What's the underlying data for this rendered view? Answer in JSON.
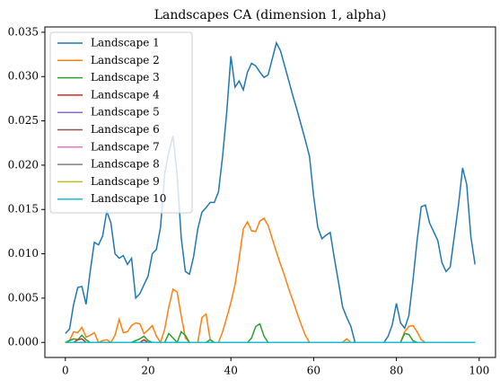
{
  "chart_data": {
    "type": "line",
    "title": "Landscapes CA (dimension 1, alpha)",
    "x": [
      0,
      1,
      2,
      3,
      4,
      5,
      6,
      7,
      8,
      9,
      10,
      11,
      12,
      13,
      14,
      15,
      16,
      17,
      18,
      19,
      20,
      21,
      22,
      23,
      24,
      25,
      26,
      27,
      28,
      29,
      30,
      31,
      32,
      33,
      34,
      35,
      36,
      37,
      38,
      39,
      40,
      41,
      42,
      43,
      44,
      45,
      46,
      47,
      48,
      49,
      50,
      51,
      52,
      53,
      54,
      55,
      56,
      57,
      58,
      59,
      60,
      61,
      62,
      63,
      64,
      65,
      66,
      67,
      68,
      69,
      70,
      71,
      72,
      73,
      74,
      75,
      76,
      77,
      78,
      79,
      80,
      81,
      82,
      83,
      84,
      85,
      86,
      87,
      88,
      89,
      90,
      91,
      92,
      93,
      94,
      95,
      96,
      97,
      98,
      99
    ],
    "xlim": [
      -4.95,
      103.95
    ],
    "xticks": [
      0,
      20,
      40,
      60,
      80,
      100
    ],
    "ylim": [
      -0.0017,
      0.0356
    ],
    "yticks": [
      {
        "value": 0,
        "label": "0.000"
      },
      {
        "value": 0.005,
        "label": "0.005"
      },
      {
        "value": 0.01,
        "label": "0.010"
      },
      {
        "value": 0.015,
        "label": "0.015"
      },
      {
        "value": 0.02,
        "label": "0.020"
      },
      {
        "value": 0.025,
        "label": "0.025"
      },
      {
        "value": 0.03,
        "label": "0.030"
      },
      {
        "value": 0.035,
        "label": "0.035"
      }
    ],
    "legend": "upper left",
    "series": [
      {
        "name": "Landscape 1",
        "color": "#1f77b4",
        "values": [
          0.001,
          0.0015,
          0.0043,
          0.0062,
          0.0063,
          0.0043,
          0.008,
          0.0113,
          0.011,
          0.012,
          0.0148,
          0.0135,
          0.01,
          0.0095,
          0.0098,
          0.0088,
          0.0095,
          0.005,
          0.0055,
          0.0065,
          0.0075,
          0.01,
          0.0105,
          0.013,
          0.019,
          0.0215,
          0.0233,
          0.019,
          0.0118,
          0.008,
          0.0077,
          0.0097,
          0.0128,
          0.0147,
          0.0152,
          0.0158,
          0.0158,
          0.017,
          0.021,
          0.026,
          0.0323,
          0.0288,
          0.0295,
          0.0285,
          0.0305,
          0.0315,
          0.0312,
          0.0305,
          0.0299,
          0.0302,
          0.032,
          0.0338,
          0.0329,
          0.0312,
          0.0295,
          0.0278,
          0.0262,
          0.0245,
          0.0228,
          0.021,
          0.0165,
          0.013,
          0.0117,
          0.0121,
          0.0124,
          0.0095,
          0.0068,
          0.004,
          0.0028,
          0.0018,
          0,
          0,
          0,
          0,
          0,
          0,
          0,
          0,
          0.0007,
          0.002,
          0.0044,
          0.0022,
          0.0016,
          0.003,
          0.007,
          0.0115,
          0.0153,
          0.0155,
          0.0135,
          0.0125,
          0.0115,
          0.009,
          0.008,
          0.0085,
          0.012,
          0.0155,
          0.0197,
          0.0178,
          0.0119,
          0.0088
        ]
      },
      {
        "name": "Landscape 2",
        "color": "#ff7f0e",
        "values": [
          0,
          0.0002,
          0.0012,
          0.0011,
          0.0017,
          0.0006,
          0.0008,
          0.0011,
          0,
          0.0002,
          0.0003,
          0,
          0.0008,
          0.0026,
          0.0011,
          0.0012,
          0.0019,
          0.0022,
          0.0021,
          0.001,
          0.0014,
          0.0019,
          0.0007,
          0,
          0.0015,
          0.004,
          0.006,
          0.0057,
          0.003,
          0.0005,
          0,
          0,
          0,
          0.0028,
          0.0032,
          0.0003,
          0,
          0,
          0.0012,
          0.0028,
          0.0045,
          0.0065,
          0.0095,
          0.0128,
          0.0136,
          0.0126,
          0.0125,
          0.0137,
          0.014,
          0.0132,
          0.0117,
          0.0102,
          0.0088,
          0.0075,
          0.006,
          0.0047,
          0.0033,
          0.002,
          0.0008,
          0,
          0,
          0,
          0,
          0,
          0,
          0,
          0,
          0,
          0.0004,
          0,
          0,
          0,
          0,
          0,
          0,
          0,
          0,
          0,
          0,
          0,
          0,
          0,
          0.0012,
          0.0018,
          0.0019,
          0.0012,
          0.0003,
          0,
          0,
          0,
          0,
          0,
          0,
          0,
          0,
          0,
          0,
          0,
          0,
          0
        ]
      },
      {
        "name": "Landscape 3",
        "color": "#2ca02c",
        "values": [
          0,
          0.0002,
          0.0004,
          0.0003,
          0.0008,
          0.0003,
          0,
          0,
          0,
          0,
          0,
          0,
          0,
          0,
          0,
          0,
          0,
          0.0002,
          0.0004,
          0.0007,
          0.0002,
          0,
          0,
          0,
          0,
          0.001,
          0.0005,
          0,
          0.0012,
          0.0008,
          0,
          0,
          0,
          0,
          0,
          0.0003,
          0,
          0,
          0,
          0,
          0,
          0,
          0,
          0,
          0,
          0.0005,
          0.0018,
          0.0021,
          0.0007,
          0,
          0,
          0,
          0,
          0,
          0,
          0,
          0,
          0,
          0,
          0,
          0,
          0,
          0,
          0,
          0,
          0,
          0,
          0,
          0,
          0,
          0,
          0,
          0,
          0,
          0,
          0,
          0,
          0,
          0,
          0,
          0,
          0,
          0.001,
          0.0009,
          0.0002,
          0,
          0,
          0,
          0,
          0,
          0,
          0,
          0,
          0,
          0,
          0,
          0,
          0,
          0,
          0
        ]
      },
      {
        "name": "Landscape 4",
        "color": "#d62728",
        "values": [
          0,
          0,
          0,
          0.0003,
          0.0004,
          0,
          0,
          0,
          0,
          0,
          0,
          0,
          0,
          0,
          0,
          0,
          0,
          0,
          0,
          0.0003,
          0,
          0,
          0,
          0,
          0,
          0,
          0,
          0,
          0,
          0,
          0,
          0,
          0,
          0,
          0,
          0,
          0,
          0,
          0,
          0,
          0,
          0,
          0,
          0,
          0,
          0,
          0,
          0,
          0,
          0,
          0,
          0,
          0,
          0,
          0,
          0,
          0,
          0,
          0,
          0,
          0,
          0,
          0,
          0,
          0,
          0,
          0,
          0,
          0,
          0,
          0,
          0,
          0,
          0,
          0,
          0,
          0,
          0,
          0,
          0,
          0,
          0,
          0,
          0,
          0,
          0,
          0,
          0,
          0,
          0,
          0,
          0,
          0,
          0,
          0,
          0,
          0,
          0,
          0,
          0
        ]
      },
      {
        "name": "Landscape 5",
        "color": "#9467bd",
        "values": [
          0,
          0,
          0,
          0,
          0,
          0,
          0,
          0,
          0,
          0,
          0,
          0,
          0,
          0,
          0,
          0,
          0,
          0,
          0,
          0,
          0,
          0,
          0,
          0,
          0,
          0,
          0,
          0,
          0,
          0,
          0,
          0,
          0,
          0,
          0,
          0,
          0,
          0,
          0,
          0,
          0,
          0,
          0,
          0,
          0,
          0,
          0,
          0,
          0,
          0,
          0,
          0,
          0,
          0,
          0,
          0,
          0,
          0,
          0,
          0,
          0,
          0,
          0,
          0,
          0,
          0,
          0,
          0,
          0,
          0,
          0,
          0,
          0,
          0,
          0,
          0,
          0,
          0,
          0,
          0,
          0,
          0,
          0,
          0,
          0,
          0,
          0,
          0,
          0,
          0,
          0,
          0,
          0,
          0,
          0,
          0,
          0,
          0,
          0,
          0
        ]
      },
      {
        "name": "Landscape 6",
        "color": "#8c564b",
        "values": [
          0,
          0,
          0,
          0,
          0,
          0,
          0,
          0,
          0,
          0,
          0,
          0,
          0,
          0,
          0,
          0,
          0,
          0,
          0,
          0,
          0,
          0,
          0,
          0,
          0,
          0,
          0,
          0,
          0,
          0,
          0,
          0,
          0,
          0,
          0,
          0,
          0,
          0,
          0,
          0,
          0,
          0,
          0,
          0,
          0,
          0,
          0,
          0,
          0,
          0,
          0,
          0,
          0,
          0,
          0,
          0,
          0,
          0,
          0,
          0,
          0,
          0,
          0,
          0,
          0,
          0,
          0,
          0,
          0,
          0,
          0,
          0,
          0,
          0,
          0,
          0,
          0,
          0,
          0,
          0,
          0,
          0,
          0,
          0,
          0,
          0,
          0,
          0,
          0,
          0,
          0,
          0,
          0,
          0,
          0,
          0,
          0,
          0,
          0,
          0
        ]
      },
      {
        "name": "Landscape 7",
        "color": "#e377c2",
        "values": [
          0,
          0,
          0,
          0,
          0,
          0,
          0,
          0,
          0,
          0,
          0,
          0,
          0,
          0,
          0,
          0,
          0,
          0,
          0,
          0,
          0,
          0,
          0,
          0,
          0,
          0,
          0,
          0,
          0,
          0,
          0,
          0,
          0,
          0,
          0,
          0,
          0,
          0,
          0,
          0,
          0,
          0,
          0,
          0,
          0,
          0,
          0,
          0,
          0,
          0,
          0,
          0,
          0,
          0,
          0,
          0,
          0,
          0,
          0,
          0,
          0,
          0,
          0,
          0,
          0,
          0,
          0,
          0,
          0,
          0,
          0,
          0,
          0,
          0,
          0,
          0,
          0,
          0,
          0,
          0,
          0,
          0,
          0,
          0,
          0,
          0,
          0,
          0,
          0,
          0,
          0,
          0,
          0,
          0,
          0,
          0,
          0,
          0,
          0,
          0
        ]
      },
      {
        "name": "Landscape 8",
        "color": "#7f7f7f",
        "values": [
          0,
          0,
          0,
          0,
          0,
          0,
          0,
          0,
          0,
          0,
          0,
          0,
          0,
          0,
          0,
          0,
          0,
          0,
          0,
          0,
          0,
          0,
          0,
          0,
          0,
          0,
          0,
          0,
          0,
          0,
          0,
          0,
          0,
          0,
          0,
          0,
          0,
          0,
          0,
          0,
          0,
          0,
          0,
          0,
          0,
          0,
          0,
          0,
          0,
          0,
          0,
          0,
          0,
          0,
          0,
          0,
          0,
          0,
          0,
          0,
          0,
          0,
          0,
          0,
          0,
          0,
          0,
          0,
          0,
          0,
          0,
          0,
          0,
          0,
          0,
          0,
          0,
          0,
          0,
          0,
          0,
          0,
          0,
          0,
          0,
          0,
          0,
          0,
          0,
          0,
          0,
          0,
          0,
          0,
          0,
          0,
          0,
          0,
          0,
          0
        ]
      },
      {
        "name": "Landscape 9",
        "color": "#bcbd22",
        "values": [
          0,
          0,
          0,
          0,
          0,
          0,
          0,
          0,
          0,
          0,
          0,
          0,
          0,
          0,
          0,
          0,
          0,
          0,
          0,
          0,
          0,
          0,
          0,
          0,
          0,
          0,
          0,
          0,
          0,
          0,
          0,
          0,
          0,
          0,
          0,
          0,
          0,
          0,
          0,
          0,
          0,
          0,
          0,
          0,
          0,
          0,
          0,
          0,
          0,
          0,
          0,
          0,
          0,
          0,
          0,
          0,
          0,
          0,
          0,
          0,
          0,
          0,
          0,
          0,
          0,
          0,
          0,
          0,
          0,
          0,
          0,
          0,
          0,
          0,
          0,
          0,
          0,
          0,
          0,
          0,
          0,
          0,
          0,
          0,
          0,
          0,
          0,
          0,
          0,
          0,
          0,
          0,
          0,
          0,
          0,
          0,
          0,
          0,
          0,
          0
        ]
      },
      {
        "name": "Landscape 10",
        "color": "#17becf",
        "values": [
          0,
          0,
          0,
          0,
          0,
          0,
          0,
          0,
          0,
          0,
          0,
          0,
          0,
          0,
          0,
          0,
          0,
          0,
          0,
          0,
          0,
          0,
          0,
          0,
          0,
          0,
          0,
          0,
          0,
          0,
          0,
          0,
          0,
          0,
          0,
          0,
          0,
          0,
          0,
          0,
          0,
          0,
          0,
          0,
          0,
          0,
          0,
          0,
          0,
          0,
          0,
          0,
          0,
          0,
          0,
          0,
          0,
          0,
          0,
          0,
          0,
          0,
          0,
          0,
          0,
          0,
          0,
          0,
          0,
          0,
          0,
          0,
          0,
          0,
          0,
          0,
          0,
          0,
          0,
          0,
          0,
          0,
          0,
          0,
          0,
          0,
          0,
          0,
          0,
          0,
          0,
          0,
          0,
          0,
          0,
          0,
          0,
          0,
          0,
          0
        ]
      }
    ]
  }
}
